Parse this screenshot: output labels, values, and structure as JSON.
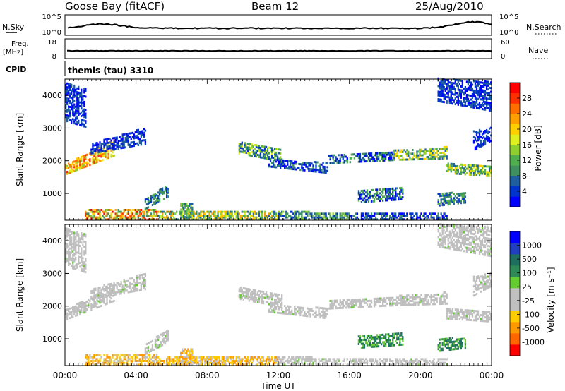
{
  "header": {
    "station": "Goose Bay (fitACF)",
    "beam": "Beam 12",
    "date": "25/Aug/2010"
  },
  "top_panels": {
    "nsky_label": "N.Sky",
    "nsky_ticks": [
      "10^5",
      "10^0"
    ],
    "nsearch_label": "N.Search",
    "nsearch_ticks": [
      "10^5",
      "10^0"
    ],
    "freq_label_1": "Freq.",
    "freq_label_2": "[MHz]",
    "freq_ticks": [
      "18",
      "8"
    ],
    "nave_label": "Nave",
    "nave_ticks": [
      "60",
      "0"
    ],
    "cpid_label": "CPID",
    "cpid_text": "themis (tau) 3310"
  },
  "chart_data": [
    {
      "type": "heatmap",
      "name": "power",
      "ylabel": "Slant Range [km]",
      "yticks": [
        1000,
        2000,
        3000,
        4000
      ],
      "ylim": [
        180,
        4500
      ],
      "xlim": [
        0,
        24
      ],
      "colorbar_label": "Power [dB]",
      "colorbar_ticks": [
        "28",
        "24",
        "20",
        "16",
        "12",
        "8",
        "4"
      ],
      "colors": [
        "#0000ff",
        "#0033cc",
        "#1f5f9f",
        "#3f8f5f",
        "#4faf4f",
        "#8fcf2f",
        "#dfef1f",
        "#ffcf00",
        "#ff9f00",
        "#ff6f00",
        "#ff2f00",
        "#ff0000"
      ],
      "bands": [
        {
          "t": [
            0.0,
            2.8
          ],
          "r0": [
            1560,
            2150
          ],
          "r1": [
            1860,
            2650
          ],
          "lvl": [
            5,
            10
          ]
        },
        {
          "t": [
            1.5,
            4.5
          ],
          "r0": [
            2200,
            2500
          ],
          "r1": [
            2500,
            3000
          ],
          "lvl": [
            0,
            2
          ]
        },
        {
          "t": [
            0.0,
            1.2
          ],
          "r0": [
            3200,
            3000
          ],
          "r1": [
            4400,
            4200
          ],
          "lvl": [
            0,
            2
          ]
        },
        {
          "t": [
            1.2,
            5.2
          ],
          "r0": [
            180,
            180
          ],
          "r1": [
            500,
            500
          ],
          "lvl": [
            3,
            11
          ]
        },
        {
          "t": [
            5.2,
            12.0
          ],
          "r0": [
            180,
            180
          ],
          "r1": [
            450,
            420
          ],
          "lvl": [
            2,
            8
          ]
        },
        {
          "t": [
            4.5,
            5.8
          ],
          "r0": [
            500,
            900
          ],
          "r1": [
            800,
            1300
          ],
          "lvl": [
            1,
            4
          ]
        },
        {
          "t": [
            6.5,
            7.2
          ],
          "r0": [
            250,
            250
          ],
          "r1": [
            700,
            700
          ],
          "lvl": [
            2,
            5
          ]
        },
        {
          "t": [
            9.8,
            12.2
          ],
          "r0": [
            2200,
            1950
          ],
          "r1": [
            2550,
            2300
          ],
          "lvl": [
            1,
            6
          ]
        },
        {
          "t": [
            11.5,
            14.8
          ],
          "r0": [
            1800,
            1600
          ],
          "r1": [
            2050,
            1900
          ],
          "lvl": [
            0,
            3
          ]
        },
        {
          "t": [
            12.0,
            16.0
          ],
          "r0": [
            180,
            180
          ],
          "r1": [
            420,
            400
          ],
          "lvl": [
            1,
            5
          ]
        },
        {
          "t": [
            14.8,
            18.5
          ],
          "r0": [
            1900,
            2000
          ],
          "r1": [
            2150,
            2250
          ],
          "lvl": [
            0,
            4
          ]
        },
        {
          "t": [
            16.0,
            21.5
          ],
          "r0": [
            180,
            180
          ],
          "r1": [
            380,
            380
          ],
          "lvl": [
            0,
            3
          ]
        },
        {
          "t": [
            18.5,
            21.5
          ],
          "r0": [
            2000,
            2050
          ],
          "r1": [
            2300,
            2400
          ],
          "lvl": [
            2,
            7
          ]
        },
        {
          "t": [
            21.5,
            24.0
          ],
          "r0": [
            1600,
            1500
          ],
          "r1": [
            1900,
            1800
          ],
          "lvl": [
            2,
            7
          ]
        },
        {
          "t": [
            21.0,
            24.0
          ],
          "r0": [
            3800,
            3500
          ],
          "r1": [
            4500,
            4400
          ],
          "lvl": [
            0,
            2
          ]
        },
        {
          "t": [
            23.0,
            24.0
          ],
          "r0": [
            2300,
            2600
          ],
          "r1": [
            2900,
            3000
          ],
          "lvl": [
            0,
            2
          ]
        },
        {
          "t": [
            16.5,
            19.0
          ],
          "r0": [
            700,
            800
          ],
          "r1": [
            1100,
            1200
          ],
          "lvl": [
            0,
            4
          ]
        },
        {
          "t": [
            21.0,
            22.5
          ],
          "r0": [
            600,
            700
          ],
          "r1": [
            1000,
            1000
          ],
          "lvl": [
            1,
            4
          ]
        }
      ]
    },
    {
      "type": "heatmap",
      "name": "velocity",
      "ylabel": "Slant Range [km]",
      "yticks": [
        1000,
        2000,
        3000,
        4000
      ],
      "ylim": [
        180,
        4500
      ],
      "xlim": [
        0,
        24
      ],
      "xticks": [
        "00:00",
        "04:00",
        "08:00",
        "12:00",
        "16:00",
        "20:00",
        "00:00"
      ],
      "xlabel": "Time UT",
      "colorbar_label": "Velocity [m s⁻¹]",
      "colorbar_ticks": [
        "1000",
        "500",
        "100",
        "25",
        "-25",
        "-100",
        "-500",
        "-1000"
      ],
      "colors": [
        "#ff0000",
        "#ff6600",
        "#ff9900",
        "#ffcc00",
        "#c0c0c0",
        "#c0c0c0",
        "#66cc33",
        "#2e8b57",
        "#1f6f5f",
        "#1f3fbf",
        "#0000ff"
      ],
      "ground_color": "#bfbfbf",
      "bands": [
        {
          "t": [
            0.0,
            2.8
          ],
          "r0": [
            1560,
            2150
          ],
          "r1": [
            1860,
            2650
          ],
          "g": 1,
          "v": 0
        },
        {
          "t": [
            1.5,
            4.5
          ],
          "r0": [
            2200,
            2500
          ],
          "r1": [
            2500,
            3000
          ],
          "g": 1,
          "v": 0
        },
        {
          "t": [
            0.0,
            1.2
          ],
          "r0": [
            3200,
            3000
          ],
          "r1": [
            4400,
            4200
          ],
          "g": 1,
          "v": 0
        },
        {
          "t": [
            1.2,
            5.2
          ],
          "r0": [
            180,
            180
          ],
          "r1": [
            500,
            500
          ],
          "g": 0,
          "v": -2
        },
        {
          "t": [
            5.2,
            12.0
          ],
          "r0": [
            180,
            180
          ],
          "r1": [
            450,
            420
          ],
          "g": 0,
          "v": -2
        },
        {
          "t": [
            4.5,
            5.8
          ],
          "r0": [
            500,
            900
          ],
          "r1": [
            800,
            1300
          ],
          "g": 1,
          "v": 0
        },
        {
          "t": [
            6.5,
            7.2
          ],
          "r0": [
            250,
            250
          ],
          "r1": [
            700,
            700
          ],
          "g": 0,
          "v": -2
        },
        {
          "t": [
            9.8,
            12.2
          ],
          "r0": [
            2200,
            1950
          ],
          "r1": [
            2550,
            2300
          ],
          "g": 1,
          "v": 0
        },
        {
          "t": [
            11.5,
            14.8
          ],
          "r0": [
            1800,
            1600
          ],
          "r1": [
            2050,
            1900
          ],
          "g": 1,
          "v": 0
        },
        {
          "t": [
            12.0,
            16.0
          ],
          "r0": [
            180,
            180
          ],
          "r1": [
            420,
            400
          ],
          "g": 1,
          "v": 0
        },
        {
          "t": [
            14.8,
            18.5
          ],
          "r0": [
            1900,
            2000
          ],
          "r1": [
            2150,
            2250
          ],
          "g": 1,
          "v": 0
        },
        {
          "t": [
            16.0,
            21.5
          ],
          "r0": [
            180,
            180
          ],
          "r1": [
            380,
            380
          ],
          "g": 1,
          "v": 0
        },
        {
          "t": [
            18.5,
            21.5
          ],
          "r0": [
            2000,
            2050
          ],
          "r1": [
            2300,
            2400
          ],
          "g": 1,
          "v": 0
        },
        {
          "t": [
            21.5,
            24.0
          ],
          "r0": [
            1600,
            1500
          ],
          "r1": [
            1900,
            1800
          ],
          "g": 1,
          "v": 0
        },
        {
          "t": [
            21.0,
            24.0
          ],
          "r0": [
            3800,
            3500
          ],
          "r1": [
            4500,
            4400
          ],
          "g": 1,
          "v": 0
        },
        {
          "t": [
            23.0,
            24.0
          ],
          "r0": [
            2300,
            2600
          ],
          "r1": [
            2900,
            3000
          ],
          "g": 1,
          "v": 0
        },
        {
          "t": [
            16.5,
            19.0
          ],
          "r0": [
            700,
            800
          ],
          "r1": [
            1100,
            1200
          ],
          "g": 0,
          "v": 2
        },
        {
          "t": [
            21.0,
            22.5
          ],
          "r0": [
            600,
            700
          ],
          "r1": [
            1000,
            1000
          ],
          "g": 0,
          "v": 2
        }
      ]
    }
  ]
}
